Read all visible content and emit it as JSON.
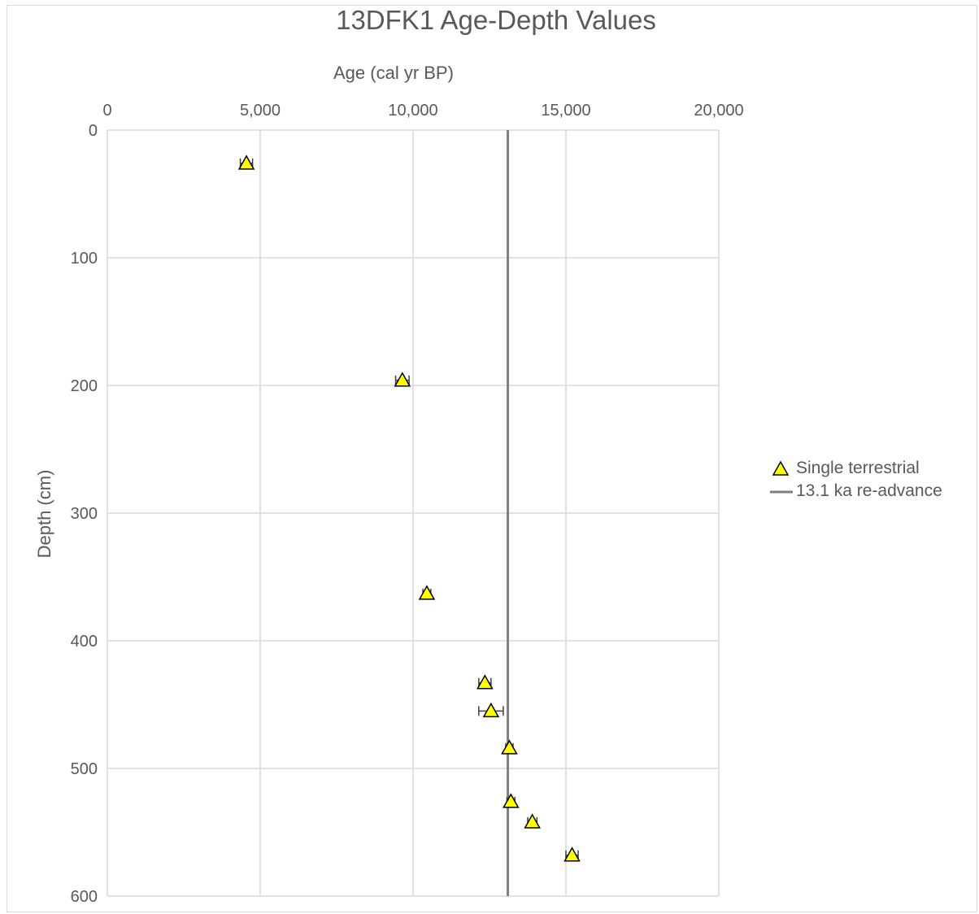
{
  "chart_data": {
    "type": "scatter",
    "title": "13DFK1 Age-Depth Values",
    "xlabel": "Age (cal yr BP)",
    "ylabel": "Depth (cm)",
    "xlim": [
      0,
      20000
    ],
    "ylim": [
      0,
      600
    ],
    "y_inverted": true,
    "x_axis_position": "top",
    "x_ticks": [
      0,
      5000,
      10000,
      15000,
      20000
    ],
    "x_tick_labels": [
      "0",
      "5,000",
      "10,000",
      "15,000",
      "20,000"
    ],
    "y_ticks": [
      0,
      100,
      200,
      300,
      400,
      500,
      600
    ],
    "y_tick_labels": [
      "0",
      "100",
      "200",
      "300",
      "400",
      "500",
      "600"
    ],
    "grid": true,
    "legend_position": "right",
    "series": [
      {
        "name": "Single terrestrial",
        "marker": "triangle",
        "color": "#ffff00",
        "edge_color": "#000000",
        "x": [
          4550,
          9650,
          10450,
          12350,
          12550,
          13150,
          13200,
          13900,
          15200
        ],
        "y": [
          26,
          196,
          363,
          433,
          455,
          484,
          526,
          542,
          568
        ],
        "x_error": [
          200,
          220,
          130,
          200,
          400,
          120,
          130,
          150,
          200
        ]
      },
      {
        "name": "13.1 ka re-advance",
        "type": "vline",
        "color": "#7f7f7f",
        "x": [
          13100,
          13100
        ],
        "y": [
          0,
          600
        ]
      }
    ]
  }
}
